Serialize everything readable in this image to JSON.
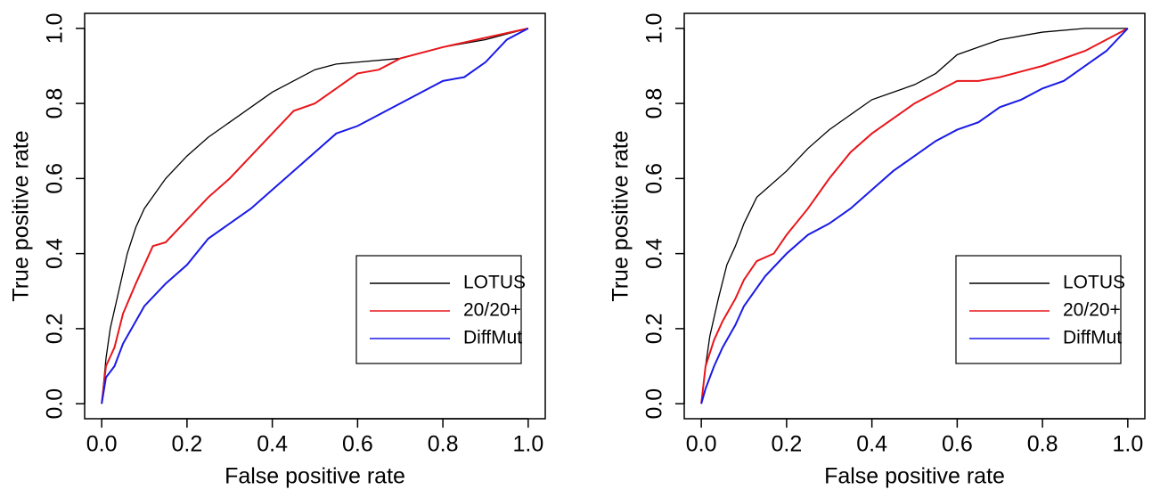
{
  "chart_data": [
    {
      "type": "line",
      "x_label": "False positive rate",
      "y_label": "True positive rate",
      "xlim": [
        -0.04,
        1.04
      ],
      "ylim": [
        -0.04,
        1.04
      ],
      "xticks": [
        {
          "value": 0,
          "label": "0.0"
        },
        0.2,
        0.4,
        0.6,
        0.8,
        {
          "value": 1,
          "label": "1.0"
        }
      ],
      "yticks": [
        {
          "value": 0,
          "label": "0.0"
        },
        0.2,
        0.4,
        0.6,
        0.8,
        {
          "value": 1,
          "label": "1.0"
        }
      ],
      "legend": "bottom right",
      "series": [
        {
          "name": "LOTUS",
          "color": "#000000",
          "x": [
            0,
            0.01,
            0.02,
            0.04,
            0.06,
            0.08,
            0.1,
            0.15,
            0.2,
            0.25,
            0.3,
            0.35,
            0.4,
            0.45,
            0.5,
            0.55,
            0.6,
            0.7,
            0.8,
            0.9,
            0.95,
            1
          ],
          "values": [
            0,
            0.12,
            0.2,
            0.3,
            0.4,
            0.47,
            0.52,
            0.6,
            0.66,
            0.71,
            0.75,
            0.79,
            0.83,
            0.86,
            0.89,
            0.905,
            0.91,
            0.92,
            0.95,
            0.97,
            0.985,
            1
          ]
        },
        {
          "name": "20/20+",
          "color": "#e8161b",
          "x": [
            0,
            0.01,
            0.03,
            0.05,
            0.08,
            0.12,
            0.15,
            0.2,
            0.25,
            0.3,
            0.35,
            0.4,
            0.45,
            0.5,
            0.55,
            0.6,
            0.65,
            0.7,
            0.8,
            0.9,
            1
          ],
          "values": [
            0,
            0.1,
            0.15,
            0.24,
            0.32,
            0.42,
            0.43,
            0.49,
            0.55,
            0.6,
            0.66,
            0.72,
            0.78,
            0.8,
            0.84,
            0.88,
            0.89,
            0.92,
            0.95,
            0.975,
            1
          ]
        },
        {
          "name": "DiffMut",
          "color": "#1a1ae6",
          "x": [
            0,
            0.01,
            0.03,
            0.05,
            0.08,
            0.1,
            0.15,
            0.2,
            0.25,
            0.3,
            0.35,
            0.4,
            0.45,
            0.5,
            0.55,
            0.6,
            0.65,
            0.7,
            0.75,
            0.8,
            0.85,
            0.9,
            0.95,
            1
          ],
          "values": [
            0,
            0.07,
            0.1,
            0.16,
            0.22,
            0.26,
            0.32,
            0.37,
            0.44,
            0.48,
            0.52,
            0.57,
            0.62,
            0.67,
            0.72,
            0.74,
            0.77,
            0.8,
            0.83,
            0.86,
            0.87,
            0.91,
            0.97,
            1
          ]
        }
      ]
    },
    {
      "type": "line",
      "x_label": "False positive rate",
      "y_label": "True positive rate",
      "xlim": [
        -0.04,
        1.04
      ],
      "ylim": [
        -0.04,
        1.04
      ],
      "xticks": [
        {
          "value": 0,
          "label": "0.0"
        },
        0.2,
        0.4,
        0.6,
        0.8,
        {
          "value": 1,
          "label": "1.0"
        }
      ],
      "yticks": [
        {
          "value": 0,
          "label": "0.0"
        },
        0.2,
        0.4,
        0.6,
        0.8,
        {
          "value": 1,
          "label": "1.0"
        }
      ],
      "legend": "bottom right",
      "series": [
        {
          "name": "LOTUS",
          "color": "#000000",
          "x": [
            0,
            0.01,
            0.02,
            0.04,
            0.06,
            0.08,
            0.1,
            0.13,
            0.15,
            0.2,
            0.25,
            0.3,
            0.35,
            0.4,
            0.45,
            0.5,
            0.55,
            0.6,
            0.65,
            0.7,
            0.8,
            0.9,
            1
          ],
          "values": [
            0,
            0.1,
            0.18,
            0.28,
            0.37,
            0.42,
            0.48,
            0.55,
            0.57,
            0.62,
            0.68,
            0.73,
            0.77,
            0.81,
            0.83,
            0.85,
            0.88,
            0.93,
            0.95,
            0.97,
            0.99,
            1,
            1
          ]
        },
        {
          "name": "20/20+",
          "color": "#e8161b",
          "x": [
            0,
            0.01,
            0.03,
            0.05,
            0.08,
            0.1,
            0.13,
            0.17,
            0.2,
            0.25,
            0.3,
            0.35,
            0.4,
            0.45,
            0.5,
            0.55,
            0.6,
            0.65,
            0.7,
            0.8,
            0.9,
            1
          ],
          "values": [
            0,
            0.1,
            0.17,
            0.22,
            0.28,
            0.33,
            0.38,
            0.4,
            0.45,
            0.52,
            0.6,
            0.67,
            0.72,
            0.76,
            0.8,
            0.83,
            0.86,
            0.86,
            0.87,
            0.9,
            0.94,
            1
          ]
        },
        {
          "name": "DiffMut",
          "color": "#1a1ae6",
          "x": [
            0,
            0.01,
            0.03,
            0.05,
            0.08,
            0.1,
            0.15,
            0.2,
            0.25,
            0.3,
            0.35,
            0.4,
            0.45,
            0.5,
            0.55,
            0.6,
            0.65,
            0.7,
            0.75,
            0.8,
            0.85,
            0.9,
            0.95,
            1
          ],
          "values": [
            0,
            0.04,
            0.1,
            0.15,
            0.21,
            0.26,
            0.34,
            0.4,
            0.45,
            0.48,
            0.52,
            0.57,
            0.62,
            0.66,
            0.7,
            0.73,
            0.75,
            0.79,
            0.81,
            0.84,
            0.86,
            0.9,
            0.94,
            1
          ]
        }
      ]
    }
  ]
}
